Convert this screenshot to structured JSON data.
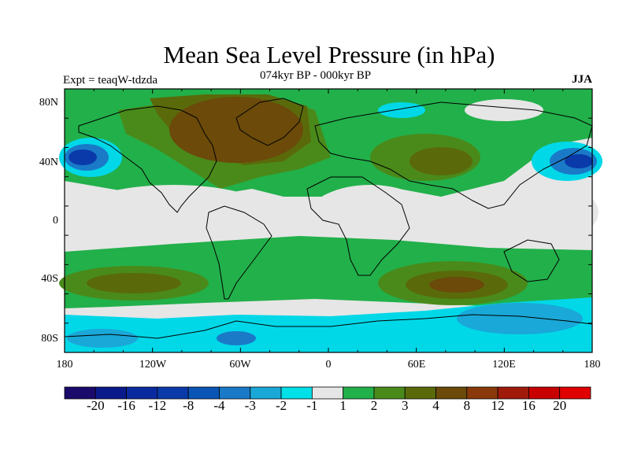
{
  "title": "Mean Sea Level Pressure (in hPa)",
  "subtitle": "074kyr BP - 000kyr BP",
  "experiment": "Expt = teaqW-tdzda",
  "season": "JJA",
  "lat_axis": [
    "80N",
    "40N",
    "0",
    "40S",
    "80S"
  ],
  "lon_axis": [
    "180",
    "120W",
    "60W",
    "0",
    "60E",
    "120E",
    "180"
  ],
  "colorbar": {
    "labels": [
      "-20",
      "-16",
      "-12",
      "-8",
      "-4",
      "-3",
      "-2",
      "-1",
      "1",
      "2",
      "3",
      "4",
      "8",
      "12",
      "16",
      "20"
    ],
    "colors": [
      "#1a0a6b",
      "#0a1a8a",
      "#0a2aa0",
      "#0a3aaa",
      "#0a55b5",
      "#1a7ac8",
      "#1aa8d8",
      "#00e0e8",
      "#e6e6e6",
      "#22b04a",
      "#4a8a1a",
      "#5a6a0a",
      "#6b4a0a",
      "#8a3a0a",
      "#a01a0a",
      "#c80000",
      "#e00000"
    ]
  },
  "fill_colors": {
    "neutral": "#e6e6e6",
    "green": "#22b04a",
    "darkgreen": "#4a8a1a",
    "olive": "#5a6a0a",
    "brown": "#6b4a0a",
    "cyan": "#00d8e8",
    "lightblue": "#1aa8d8",
    "blue": "#1a7ac8",
    "darkblue": "#0a3aaa"
  }
}
